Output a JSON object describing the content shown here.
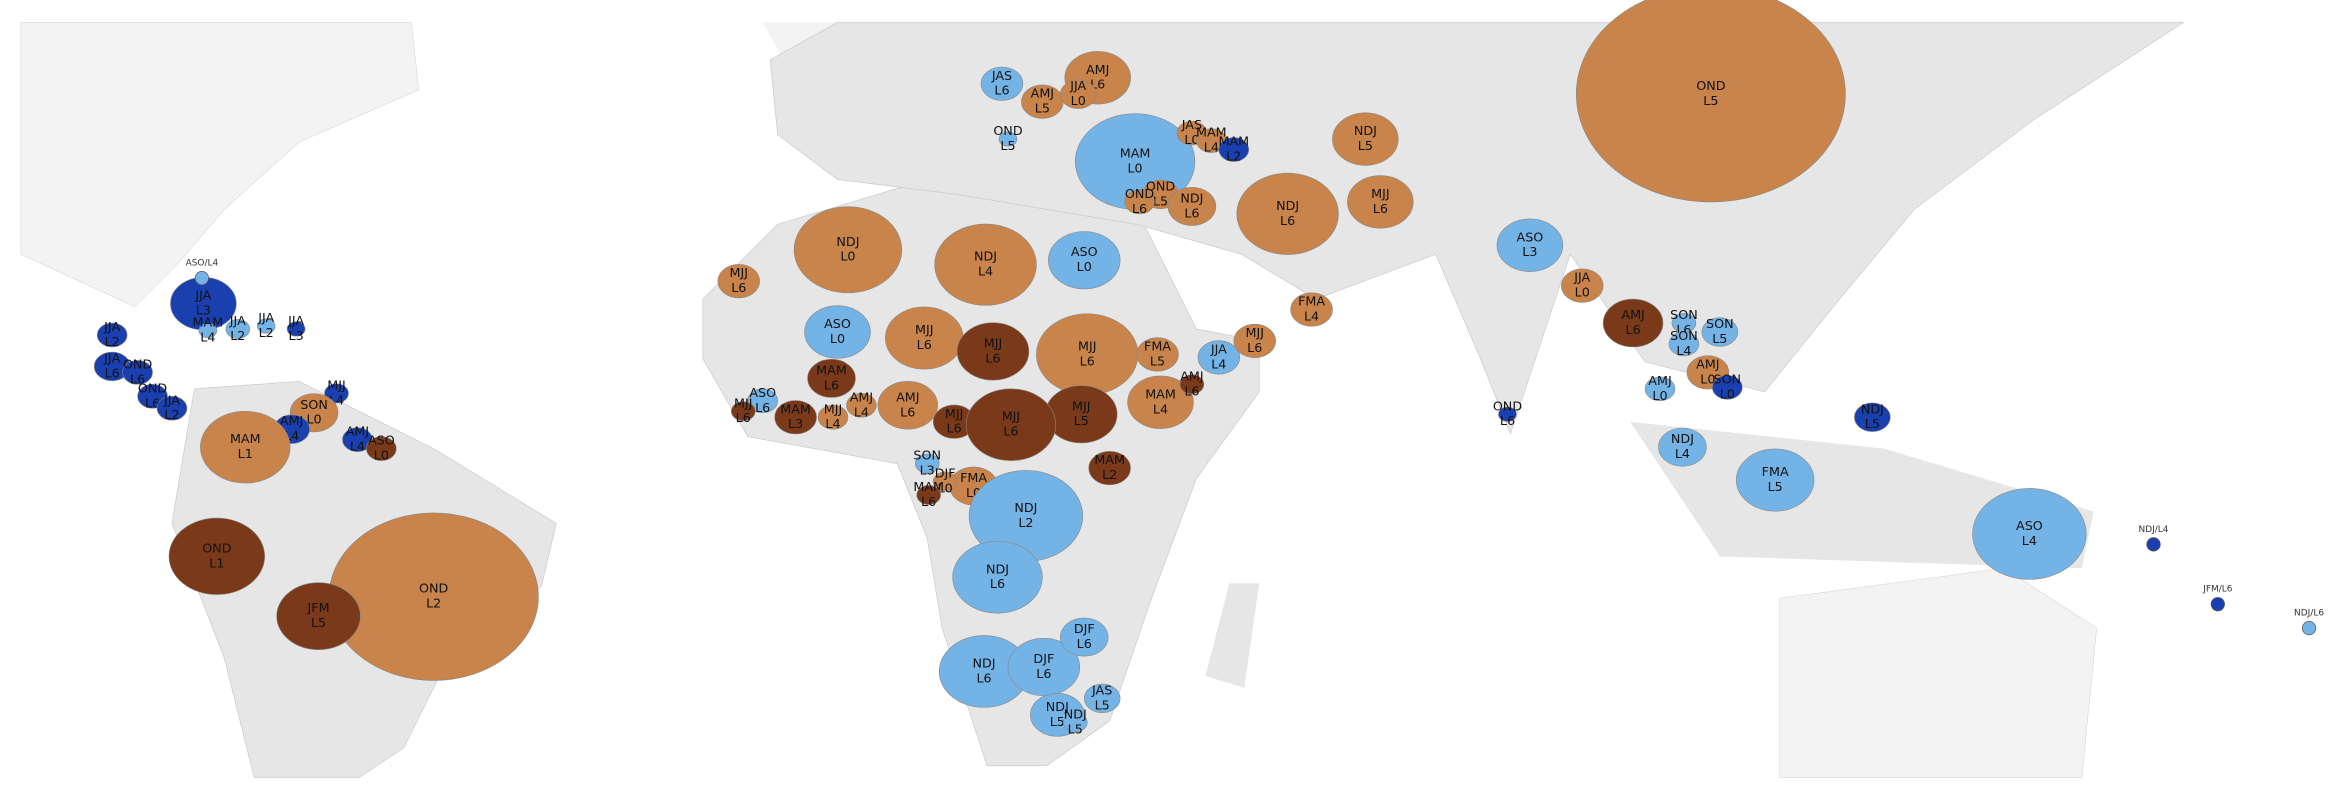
{
  "regions": [
    {
      "season": "JAS",
      "lead": "L6",
      "color": "#74b3e6"
    },
    {
      "season": "AMJ",
      "lead": "L6",
      "color": "#c8844a"
    },
    {
      "season": "AMJ",
      "lead": "L5",
      "color": "#c8844a"
    },
    {
      "season": "JJA",
      "lead": "L0",
      "color": "#c8844a"
    },
    {
      "season": "OND",
      "lead": "L5",
      "color": "#74b3e6"
    },
    {
      "season": "MAM",
      "lead": "L0",
      "color": "#74b3e6"
    },
    {
      "season": "JAS",
      "lead": "L0",
      "color": "#c8844a"
    },
    {
      "season": "MAM",
      "lead": "L4",
      "color": "#c8844a"
    },
    {
      "season": "MAM",
      "lead": "L2",
      "color": "#1a3fae"
    },
    {
      "season": "NDJ",
      "lead": "L5",
      "color": "#c8844a"
    },
    {
      "season": "OND",
      "lead": "L5",
      "color": "#c8844a"
    },
    {
      "season": "OND",
      "lead": "L6",
      "color": "#c8844a"
    },
    {
      "season": "NDJ",
      "lead": "L6",
      "color": "#c8844a"
    },
    {
      "season": "NDJ",
      "lead": "L6",
      "color": "#c8844a"
    },
    {
      "season": "MJJ",
      "lead": "L6",
      "color": "#c8844a"
    },
    {
      "season": "OND",
      "lead": "L5",
      "color": "#c8844a"
    },
    {
      "season": "NDJ",
      "lead": "L0",
      "color": "#c8844a"
    },
    {
      "season": "NDJ",
      "lead": "L4",
      "color": "#c8844a"
    },
    {
      "season": "ASO",
      "lead": "L0",
      "color": "#74b3e6"
    },
    {
      "season": "MJJ",
      "lead": "L6",
      "color": "#c8844a"
    },
    {
      "season": "ASO",
      "lead": "L0",
      "color": "#74b3e6"
    },
    {
      "season": "MJJ",
      "lead": "L6",
      "color": "#c8844a"
    },
    {
      "season": "MJJ",
      "lead": "L6",
      "color": "#7a3a1a"
    },
    {
      "season": "MJJ",
      "lead": "L6",
      "color": "#c8844a"
    },
    {
      "season": "FMA",
      "lead": "L5",
      "color": "#c8844a"
    },
    {
      "season": "FMA",
      "lead": "L4",
      "color": "#c8844a"
    },
    {
      "season": "JJA",
      "lead": "L4",
      "color": "#74b3e6"
    },
    {
      "season": "MJJ",
      "lead": "L6",
      "color": "#c8844a"
    },
    {
      "season": "MAM",
      "lead": "L6",
      "color": "#7a3a1a"
    },
    {
      "season": "MAM",
      "lead": "L3",
      "color": "#7a3a1a"
    },
    {
      "season": "MJJ",
      "lead": "L4",
      "color": "#c8844a"
    },
    {
      "season": "AMJ",
      "lead": "L4",
      "color": "#c8844a"
    },
    {
      "season": "AMJ",
      "lead": "L6",
      "color": "#c8844a"
    },
    {
      "season": "MAM",
      "lead": "L4",
      "color": "#c8844a"
    },
    {
      "season": "AMJ",
      "lead": "L6",
      "color": "#7a3a1a"
    },
    {
      "season": "MJJ",
      "lead": "L5",
      "color": "#7a3a1a"
    },
    {
      "season": "MJJ",
      "lead": "L6",
      "color": "#7a3a1a"
    },
    {
      "season": "MJJ",
      "lead": "L6",
      "color": "#7a3a1a"
    },
    {
      "season": "ASO",
      "lead": "L6",
      "color": "#74b3e6"
    },
    {
      "season": "MJJ",
      "lead": "L6",
      "color": "#7a3a1a"
    },
    {
      "season": "MAM",
      "lead": "L2",
      "color": "#7a3a1a"
    },
    {
      "season": "FMA",
      "lead": "L0",
      "color": "#c8844a"
    },
    {
      "season": "SON",
      "lead": "L3",
      "color": "#74b3e6"
    },
    {
      "season": "DJF",
      "lead": "L0",
      "color": "#c8844a"
    },
    {
      "season": "MAM",
      "lead": "L6",
      "color": "#7a3a1a"
    },
    {
      "season": "NDJ",
      "lead": "L2",
      "color": "#74b3e6"
    },
    {
      "season": "NDJ",
      "lead": "L6",
      "color": "#74b3e6"
    },
    {
      "season": "NDJ",
      "lead": "L6",
      "color": "#74b3e6"
    },
    {
      "season": "DJF",
      "lead": "L6",
      "color": "#74b3e6"
    },
    {
      "season": "DJF",
      "lead": "L6",
      "color": "#74b3e6"
    },
    {
      "season": "NDJ",
      "lead": "L5",
      "color": "#74b3e6"
    },
    {
      "season": "NDJ",
      "lead": "L5",
      "color": "#74b3e6"
    },
    {
      "season": "JAS",
      "lead": "L5",
      "color": "#74b3e6"
    },
    {
      "season": "ASO",
      "lead": "L3",
      "color": "#74b3e6"
    },
    {
      "season": "JJA",
      "lead": "L0",
      "color": "#c8844a"
    },
    {
      "season": "AMJ",
      "lead": "L6",
      "color": "#7a3a1a"
    },
    {
      "season": "SON",
      "lead": "L6",
      "color": "#74b3e6"
    },
    {
      "season": "SON",
      "lead": "L5",
      "color": "#74b3e6"
    },
    {
      "season": "SON",
      "lead": "L4",
      "color": "#74b3e6"
    },
    {
      "season": "AMJ",
      "lead": "L0",
      "color": "#c8844a"
    },
    {
      "season": "AMJ",
      "lead": "L0",
      "color": "#74b3e6"
    },
    {
      "season": "SON",
      "lead": "L0",
      "color": "#1a3fae"
    },
    {
      "season": "OND",
      "lead": "L6",
      "color": "#1a3fae"
    },
    {
      "season": "NDJ",
      "lead": "L5",
      "color": "#1a3fae"
    },
    {
      "season": "NDJ",
      "lead": "L4",
      "color": "#74b3e6"
    },
    {
      "season": "FMA",
      "lead": "L5",
      "color": "#74b3e6"
    },
    {
      "season": "ASO",
      "lead": "L4",
      "color": "#74b3e6"
    },
    {
      "season": "JJA",
      "lead": "L3",
      "color": "#1a3fae"
    },
    {
      "season": "MAM",
      "lead": "L4",
      "color": "#74b3e6"
    },
    {
      "season": "JJA",
      "lead": "L2",
      "color": "#74b3e6"
    },
    {
      "season": "JJA",
      "lead": "L2",
      "color": "#74b3e6"
    },
    {
      "season": "JJA",
      "lead": "L3",
      "color": "#1a3fae"
    },
    {
      "season": "JJA",
      "lead": "L2",
      "color": "#1a3fae"
    },
    {
      "season": "JJA",
      "lead": "L6",
      "color": "#1a3fae"
    },
    {
      "season": "OND",
      "lead": "L6",
      "color": "#1a3fae"
    },
    {
      "season": "OND",
      "lead": "L6",
      "color": "#1a3fae"
    },
    {
      "season": "JJA",
      "lead": "L2",
      "color": "#1a3fae"
    },
    {
      "season": "MJJ",
      "lead": "L4",
      "color": "#1a3fae"
    },
    {
      "season": "SON",
      "lead": "L0",
      "color": "#c8844a"
    },
    {
      "season": "AMJ",
      "lead": "L4",
      "color": "#1a3fae"
    },
    {
      "season": "AMJ",
      "lead": "L4",
      "color": "#1a3fae"
    },
    {
      "season": "ASO",
      "lead": "L0",
      "color": "#7a3a1a"
    },
    {
      "season": "MAM",
      "lead": "L1",
      "color": "#c8844a"
    },
    {
      "season": "OND",
      "lead": "L1",
      "color": "#7a3a1a"
    },
    {
      "season": "OND",
      "lead": "L2",
      "color": "#c8844a"
    },
    {
      "season": "JFM",
      "lead": "L5",
      "color": "#7a3a1a"
    }
  ],
  "points": [
    {
      "label": "ASO/L4",
      "color": "#74b3e6"
    },
    {
      "label": "NDJ/L4",
      "color": "#1a3fae"
    },
    {
      "label": "JFM/L6",
      "color": "#1a3fae"
    },
    {
      "label": "NDJ/L6",
      "color": "#74b3e6"
    }
  ]
}
